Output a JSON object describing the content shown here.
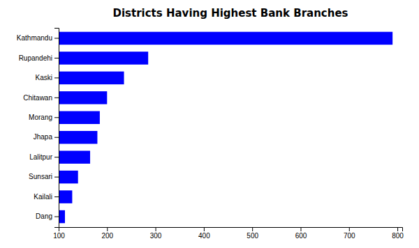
{
  "chart_data": {
    "type": "bar",
    "orientation": "horizontal",
    "title": "Districts Having Highest Bank Branches",
    "categories": [
      "Kathmandu",
      "Rupandehi",
      "Kaski",
      "Chitawan",
      "Morang",
      "Jhapa",
      "Lalitpur",
      "Sunsari",
      "Kailali",
      "Dang"
    ],
    "values": [
      790,
      285,
      235,
      200,
      185,
      180,
      165,
      140,
      128,
      113
    ],
    "color": "#0000FF",
    "xlim": [
      100,
      810
    ],
    "xticks": [
      100,
      200,
      300,
      400,
      500,
      600,
      700,
      800
    ],
    "grid": false
  }
}
